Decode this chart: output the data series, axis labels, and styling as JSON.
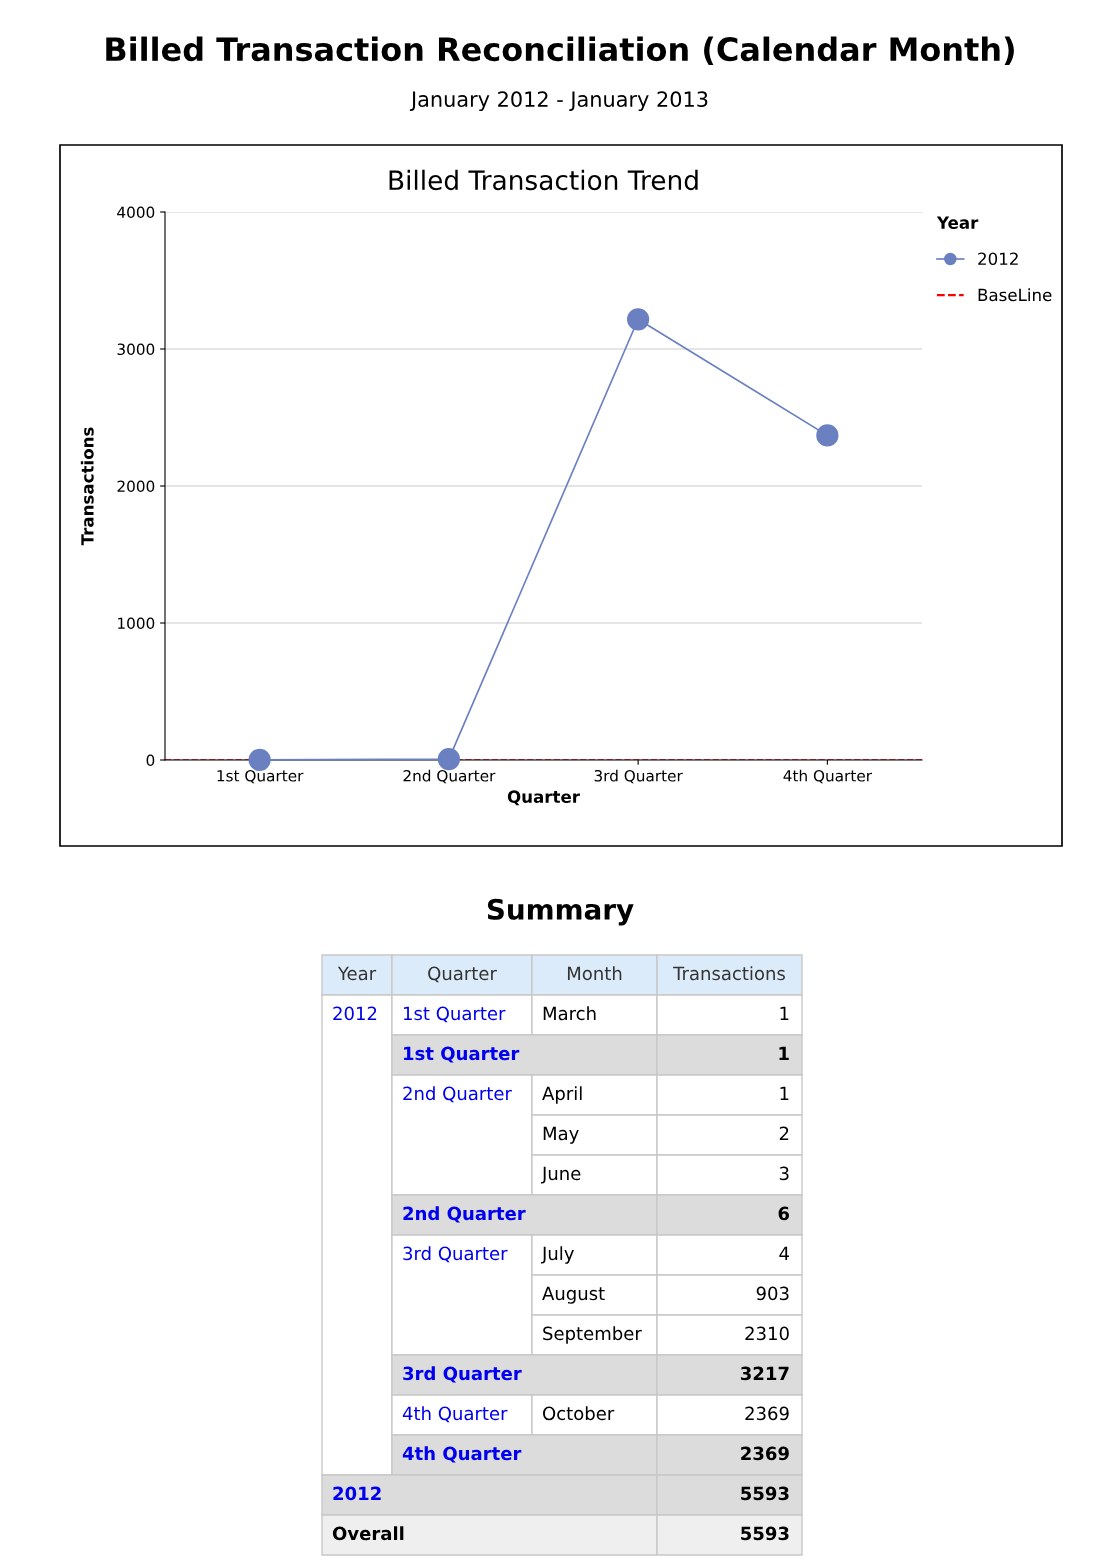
{
  "chart_data": {
    "type": "line",
    "title": "Billed Transaction Trend",
    "xlabel": "Quarter",
    "ylabel": "Transactions",
    "legend_title": "Year",
    "categories": [
      "1st Quarter",
      "2nd Quarter",
      "3rd Quarter",
      "4th Quarter"
    ],
    "series": [
      {
        "name": "2012",
        "color": "#6a80c0",
        "values": [
          1,
          6,
          3217,
          2369
        ]
      }
    ],
    "ref_lines": [
      {
        "axis": "y",
        "value": 0,
        "label": "BaseLine",
        "color": "#ff0000",
        "line_style": "dashed"
      }
    ],
    "ylim": [
      0,
      4000
    ],
    "yticks": [
      0,
      1000,
      2000,
      3000,
      4000
    ],
    "grid": "y",
    "legend": "right",
    "marker": "circle",
    "line_style": "solid",
    "annotations": [
      "Billed Transaction Reconciliation (Calendar Month)",
      "January 2012 - January 2013",
      "Summary",
      "Year",
      "Quarter",
      "Month",
      "Transactions",
      "2012",
      "1st Quarter",
      "March",
      "1",
      "1st Quarter",
      "1",
      "2nd Quarter",
      "April",
      "1",
      "May",
      "2",
      "June",
      "3",
      "2nd Quarter",
      "6",
      "3rd Quarter",
      "July",
      "4",
      "August",
      "903",
      "September",
      "2310",
      "3rd Quarter",
      "3217",
      "4th Quarter",
      "October",
      "2369",
      "4th Quarter",
      "2369",
      "2012",
      "5593",
      "Overall",
      "5593"
    ]
  }
}
